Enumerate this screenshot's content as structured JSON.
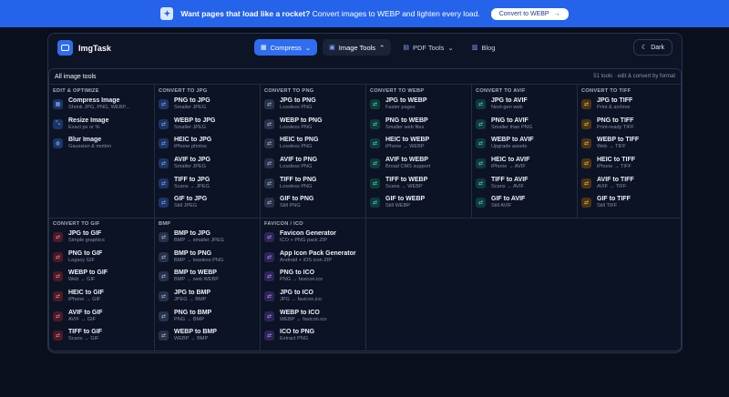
{
  "banner": {
    "lead": "Want pages that load like a rocket?",
    "text": " Convert images to WEBP and lighten every load.",
    "button": "Convert to WEBP",
    "button_arrow": "→"
  },
  "nav": {
    "logo": "ImgTask",
    "compress": "Compress",
    "image_tools": "Image Tools",
    "pdf_tools": "PDF Tools",
    "blog": "Blog",
    "dark": "Dark"
  },
  "panel": {
    "title": "All image tools",
    "meta": "51 tools · edit & convert by format"
  },
  "sections": [
    {
      "title": "EDIT & OPTIMIZE",
      "color": "blue",
      "tools": [
        {
          "name": "Compress Image",
          "desc": "Shrink JPG, PNG, WEBP..."
        },
        {
          "name": "Resize Image",
          "desc": "Exact px or %"
        },
        {
          "name": "Blur Image",
          "desc": "Gaussian & motion"
        }
      ]
    },
    {
      "title": "CONVERT TO JPG",
      "color": "blue",
      "tools": [
        {
          "name": "PNG to JPG",
          "desc": "Smaller JPEG"
        },
        {
          "name": "WEBP to JPG",
          "desc": "Smaller JPEG"
        },
        {
          "name": "HEIC to JPG",
          "desc": "iPhone photos"
        },
        {
          "name": "AVIF to JPG",
          "desc": "Smaller JPEG"
        },
        {
          "name": "TIFF to JPG",
          "desc": "Scans → JPEG"
        },
        {
          "name": "GIF to JPG",
          "desc": "Still JPEG"
        }
      ]
    },
    {
      "title": "CONVERT TO PNG",
      "color": "gray",
      "tools": [
        {
          "name": "JPG to PNG",
          "desc": "Lossless PNG"
        },
        {
          "name": "WEBP to PNG",
          "desc": "Lossless PNG"
        },
        {
          "name": "HEIC to PNG",
          "desc": "Lossless PNG"
        },
        {
          "name": "AVIF to PNG",
          "desc": "Lossless PNG"
        },
        {
          "name": "TIFF to PNG",
          "desc": "Lossless PNG"
        },
        {
          "name": "GIF to PNG",
          "desc": "Still PNG"
        }
      ]
    },
    {
      "title": "CONVERT TO WEBP",
      "color": "teal",
      "tools": [
        {
          "name": "JPG to WEBP",
          "desc": "Faster pages"
        },
        {
          "name": "PNG to WEBP",
          "desc": "Smaller web files"
        },
        {
          "name": "HEIC to WEBP",
          "desc": "iPhone → WEBP"
        },
        {
          "name": "AVIF to WEBP",
          "desc": "Broad CMS support"
        },
        {
          "name": "TIFF to WEBP",
          "desc": "Scans → WEBP"
        },
        {
          "name": "GIF to WEBP",
          "desc": "Still WEBP"
        }
      ]
    },
    {
      "title": "CONVERT TO AVIF",
      "color": "teal",
      "tools": [
        {
          "name": "JPG to AVIF",
          "desc": "Next-gen web"
        },
        {
          "name": "PNG to AVIF",
          "desc": "Smaller than PNG"
        },
        {
          "name": "WEBP to AVIF",
          "desc": "Upgrade assets"
        },
        {
          "name": "HEIC to AVIF",
          "desc": "iPhone → AVIF"
        },
        {
          "name": "TIFF to AVIF",
          "desc": "Scans → AVIF"
        },
        {
          "name": "GIF to AVIF",
          "desc": "Still AVIF"
        }
      ]
    },
    {
      "title": "CONVERT TO TIFF",
      "color": "amber",
      "tools": [
        {
          "name": "JPG to TIFF",
          "desc": "Print & archive"
        },
        {
          "name": "PNG to TIFF",
          "desc": "Print-ready TIFF"
        },
        {
          "name": "WEBP to TIFF",
          "desc": "Web → TIFF"
        },
        {
          "name": "HEIC to TIFF",
          "desc": "iPhone → TIFF"
        },
        {
          "name": "AVIF to TIFF",
          "desc": "AVIF → TIFF"
        },
        {
          "name": "GIF to TIFF",
          "desc": "Still TIFF"
        }
      ]
    },
    {
      "title": "CONVERT TO GIF",
      "color": "red",
      "tools": [
        {
          "name": "JPG to GIF",
          "desc": "Simple graphics"
        },
        {
          "name": "PNG to GIF",
          "desc": "Legacy GIF"
        },
        {
          "name": "WEBP to GIF",
          "desc": "Web → GIF"
        },
        {
          "name": "HEIC to GIF",
          "desc": "iPhone → GIF"
        },
        {
          "name": "AVIF to GIF",
          "desc": "AVIF → GIF"
        },
        {
          "name": "TIFF to GIF",
          "desc": "Scans → GIF"
        }
      ]
    },
    {
      "title": "BMP",
      "color": "gray",
      "tools": [
        {
          "name": "BMP to JPG",
          "desc": "BMP → smaller JPEG"
        },
        {
          "name": "BMP to PNG",
          "desc": "BMP → lossless PNG"
        },
        {
          "name": "BMP to WEBP",
          "desc": "BMP → web WEBP"
        },
        {
          "name": "JPG to BMP",
          "desc": "JPEG → BMP"
        },
        {
          "name": "PNG to BMP",
          "desc": "PNG → BMP"
        },
        {
          "name": "WEBP to BMP",
          "desc": "WEBP → BMP"
        }
      ]
    },
    {
      "title": "FAVICON / ICO",
      "color": "violet",
      "tools": [
        {
          "name": "Favicon Generator",
          "desc": "ICO + PNG pack ZIP"
        },
        {
          "name": "App Icon Pack Generator",
          "desc": "Android + iOS icon ZIP"
        },
        {
          "name": "PNG to ICO",
          "desc": "PNG → favicon.ico"
        },
        {
          "name": "JPG to ICO",
          "desc": "JPG → favicon.ico"
        },
        {
          "name": "WEBP to ICO",
          "desc": "WEBP → favicon.ico"
        },
        {
          "name": "ICO to PNG",
          "desc": "Extract PNG"
        }
      ]
    }
  ]
}
